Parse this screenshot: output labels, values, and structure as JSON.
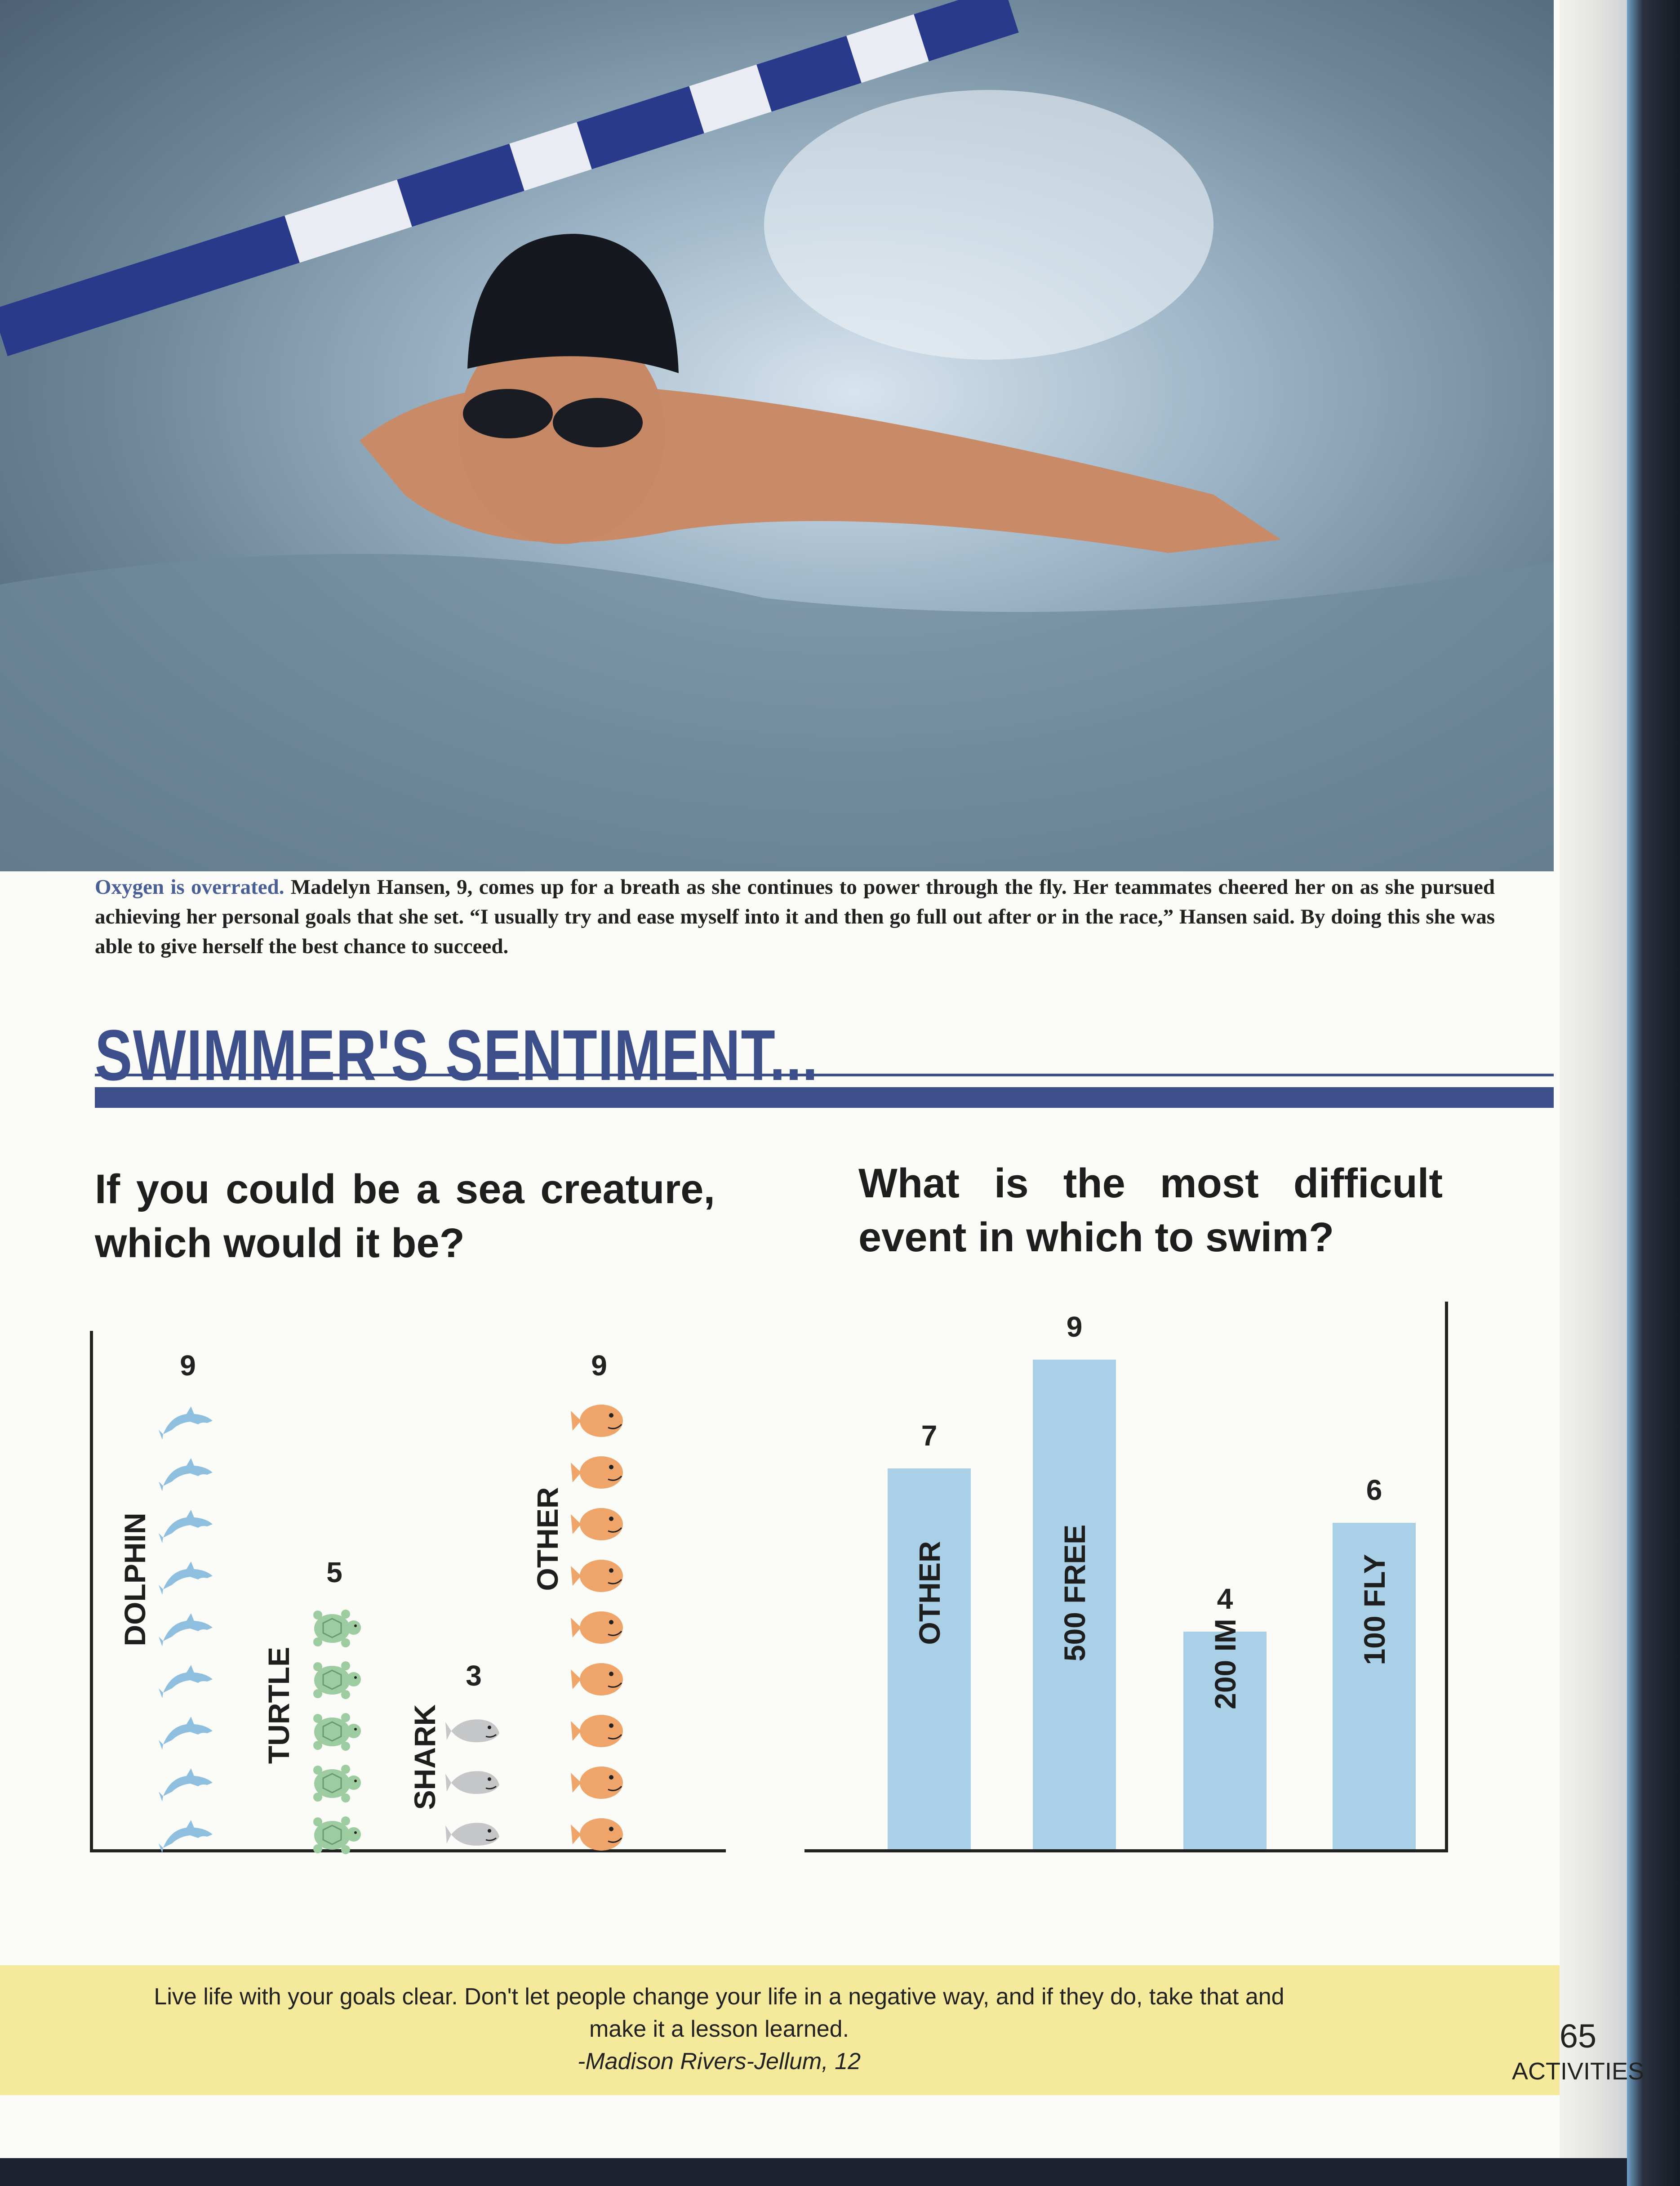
{
  "photo": {
    "description_label": "swimmer-photo"
  },
  "caption": {
    "lead": "Oxygen is overrated.",
    "text": " Madelyn Hansen, 9, comes up for a breath as she continues to power through the fly. Her teammates cheered her on as she pursued achieving her personal goals that she set. “I usually try and ease myself into it and then go full out after or in the race,” Hansen said. By doing this she was able to give herself the best chance to succeed."
  },
  "title": "SWIMMER'S SENTIMENT...",
  "colors": {
    "accent": "#3c4f8a",
    "bar": "#a9d0e6",
    "band": "#f5ea9c",
    "dolphin": "#8fbfdf",
    "turtle": "#9ccca0",
    "shark": "#c4c6c8",
    "other": "#efa46a"
  },
  "chart_data": [
    {
      "type": "bar",
      "title": "If you could be a sea creature, which would it be?",
      "style": "pictogram",
      "categories": [
        "DOLPHIN",
        "TURTLE",
        "SHARK",
        "OTHER"
      ],
      "values": [
        9,
        5,
        3,
        9
      ],
      "icons": [
        "dolphin-icon",
        "turtle-icon",
        "shark-icon",
        "fish-icon"
      ],
      "ylim": [
        0,
        10
      ]
    },
    {
      "type": "bar",
      "title": "What is the most difficult event in which to swim?",
      "categories": [
        "OTHER",
        "500 FREE",
        "200 IM",
        "100 FLY"
      ],
      "values": [
        7,
        9,
        4,
        6
      ],
      "ylim": [
        0,
        10
      ]
    }
  ],
  "footer": {
    "quote_line1": "Live life with your goals clear. Don't let people change your life in a negative way, and if they do, take that and",
    "quote_line2": "make it a lesson learned.",
    "author": "-Madison Rivers-Jellum, 12",
    "page_number": "65",
    "section": "ACTIVITIES"
  }
}
